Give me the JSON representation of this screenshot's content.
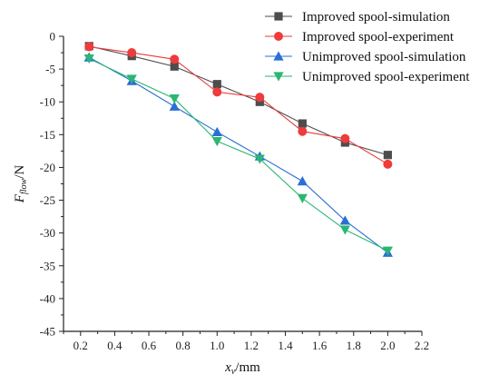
{
  "chart_data": {
    "type": "line",
    "xlabel": {
      "main": "x",
      "sub": "v",
      "unit": "/mm"
    },
    "ylabel": {
      "main": "F",
      "sub": "flow",
      "unit": "/N"
    },
    "xlim": [
      0.1,
      2.2
    ],
    "ylim": [
      -45,
      0
    ],
    "xticks": [
      0.2,
      0.4,
      0.6,
      0.8,
      1.0,
      1.2,
      1.4,
      1.6,
      1.8,
      2.0,
      2.2
    ],
    "xtick_labels": [
      "0.2",
      "0.4",
      "0.6",
      "0.8",
      "1.0",
      "1.2",
      "1.4",
      "1.6",
      "1.8",
      "2.0",
      "2.2"
    ],
    "yticks": [
      0,
      -5,
      -10,
      -15,
      -20,
      -25,
      -30,
      -35,
      -40,
      -45
    ],
    "ytick_labels": [
      "0",
      "-5",
      "-10",
      "-15",
      "-20",
      "-25",
      "-30",
      "-35",
      "-40",
      "-45"
    ],
    "legend_position": "top-right",
    "grid": false,
    "series": [
      {
        "name": "Improved spool-simulation",
        "color": "#4d4d4d",
        "marker": "square",
        "x": [
          0.25,
          0.5,
          0.75,
          1.0,
          1.25,
          1.5,
          1.75,
          2.0
        ],
        "y": [
          -1.5,
          -3.0,
          -4.6,
          -7.3,
          -10.0,
          -13.3,
          -16.2,
          -18.1
        ]
      },
      {
        "name": "Improved spool-experiment",
        "color": "#ee3b3b",
        "marker": "circle",
        "x": [
          0.25,
          0.5,
          0.75,
          1.0,
          1.25,
          1.5,
          1.75,
          2.0
        ],
        "y": [
          -1.6,
          -2.5,
          -3.5,
          -8.5,
          -9.3,
          -14.5,
          -15.6,
          -19.5
        ]
      },
      {
        "name": "Unimproved spool-simulation",
        "color": "#2a6fd6",
        "marker": "triangle-up",
        "x": [
          0.25,
          0.5,
          0.75,
          1.0,
          1.25,
          1.5,
          1.75,
          2.0
        ],
        "y": [
          -3.2,
          -6.8,
          -10.7,
          -14.6,
          -18.3,
          -22.1,
          -28.1,
          -33.0
        ]
      },
      {
        "name": "Unimproved spool-experiment",
        "color": "#2bb673",
        "marker": "triangle-down",
        "x": [
          0.25,
          0.5,
          0.75,
          1.0,
          1.25,
          1.5,
          1.75,
          2.0
        ],
        "y": [
          -3.4,
          -6.5,
          -9.5,
          -16.0,
          -18.7,
          -24.7,
          -29.5,
          -32.7
        ]
      }
    ]
  }
}
